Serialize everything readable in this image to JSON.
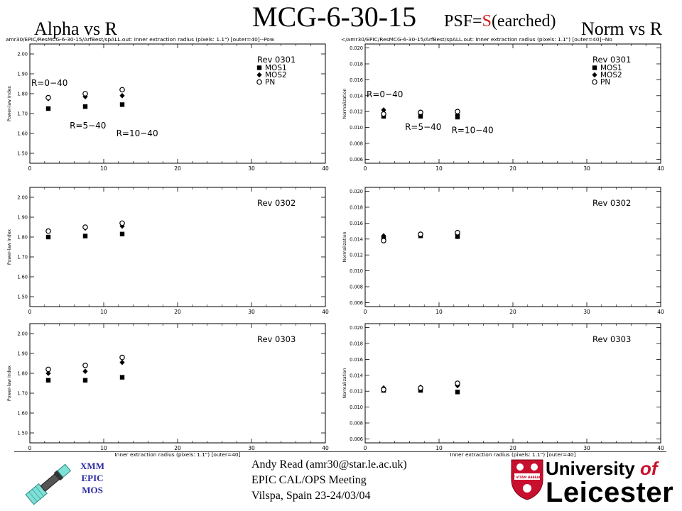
{
  "header": {
    "title": "MCG-6-30-15",
    "psf_prefix": "PSF=",
    "psf_letter": "S",
    "psf_suffix": "(earched)",
    "left_heading": "Alpha vs R",
    "right_heading": "Norm vs R"
  },
  "colors": {
    "psf_letter": "#d01818",
    "logo_red": "#c8102e",
    "xmm_blue": "#2a2aa0"
  },
  "chart_data": [
    {
      "type": "scatter",
      "column": "left",
      "row": 0,
      "header_text": "amr30/EPIC/ResMCG-6-30-15/ArfBest/spALL.out: Inner extraction radius (pixels: 1.1\") [outer=40]--Pow",
      "ylabel": "Power-law Index",
      "xlabel": "",
      "xlim": [
        0,
        40
      ],
      "ylim": [
        1.45,
        2.05
      ],
      "yticks": [
        1.5,
        1.6,
        1.7,
        1.8,
        1.9,
        2.0
      ],
      "xticks": [
        0,
        10,
        20,
        30,
        40
      ],
      "ytick_labels": [
        "1.50",
        "1.60",
        "1.70",
        "1.80",
        "1.90",
        "2.00"
      ],
      "legend_title": "Rev 0301",
      "legend_position": "top-right",
      "series": [
        {
          "name": "MOS1",
          "marker": "square",
          "x": [
            2.5,
            7.5,
            12.5
          ],
          "y": [
            1.725,
            1.735,
            1.745
          ]
        },
        {
          "name": "MOS2",
          "marker": "diamond",
          "x": [
            2.5,
            7.5,
            12.5
          ],
          "y": [
            1.775,
            1.785,
            1.79
          ]
        },
        {
          "name": "PN",
          "marker": "circle",
          "x": [
            2.5,
            7.5,
            12.5
          ],
          "y": [
            1.78,
            1.8,
            1.82
          ]
        }
      ],
      "annotations": [
        {
          "text": "R=0−40",
          "x": 0,
          "y": 1.84
        },
        {
          "text": "R=5−40",
          "x": 5.2,
          "y": 1.625
        },
        {
          "text": "R=10−40",
          "x": 11.5,
          "y": 1.585
        }
      ]
    },
    {
      "type": "scatter",
      "column": "left",
      "row": 1,
      "header_text": "",
      "ylabel": "Power-law Index",
      "xlabel": "",
      "xlim": [
        0,
        40
      ],
      "ylim": [
        1.45,
        2.05
      ],
      "yticks": [
        1.5,
        1.6,
        1.7,
        1.8,
        1.9,
        2.0
      ],
      "xticks": [
        0,
        10,
        20,
        30,
        40
      ],
      "ytick_labels": [
        "1.50",
        "1.60",
        "1.70",
        "1.80",
        "1.90",
        "2.00"
      ],
      "legend_title": "Rev 0302",
      "legend_position": "top-right",
      "series": [
        {
          "name": "MOS1",
          "marker": "square",
          "x": [
            2.5,
            7.5,
            12.5
          ],
          "y": [
            1.8,
            1.805,
            1.815
          ]
        },
        {
          "name": "MOS2",
          "marker": "diamond",
          "x": [
            2.5,
            7.5,
            12.5
          ],
          "y": [
            1.83,
            1.845,
            1.855
          ]
        },
        {
          "name": "PN",
          "marker": "circle",
          "x": [
            2.5,
            7.5,
            12.5
          ],
          "y": [
            1.83,
            1.85,
            1.87
          ]
        }
      ],
      "annotations": []
    },
    {
      "type": "scatter",
      "column": "left",
      "row": 2,
      "header_text": "",
      "ylabel": "Power-law Index",
      "xlabel": "Inner extraction radius (pixels: 1.1\") [outer=40]",
      "xlim": [
        0,
        40
      ],
      "ylim": [
        1.45,
        2.05
      ],
      "yticks": [
        1.5,
        1.6,
        1.7,
        1.8,
        1.9,
        2.0
      ],
      "xticks": [
        0,
        10,
        20,
        30,
        40
      ],
      "ytick_labels": [
        "1.50",
        "1.60",
        "1.70",
        "1.80",
        "1.90",
        "2.00"
      ],
      "legend_title": "Rev 0303",
      "legend_position": "top-right",
      "series": [
        {
          "name": "MOS1",
          "marker": "square",
          "x": [
            2.5,
            7.5,
            12.5
          ],
          "y": [
            1.765,
            1.765,
            1.78
          ]
        },
        {
          "name": "MOS2",
          "marker": "diamond",
          "x": [
            2.5,
            7.5,
            12.5
          ],
          "y": [
            1.8,
            1.81,
            1.855
          ]
        },
        {
          "name": "PN",
          "marker": "circle",
          "x": [
            2.5,
            7.5,
            12.5
          ],
          "y": [
            1.82,
            1.84,
            1.88
          ]
        }
      ],
      "annotations": []
    },
    {
      "type": "scatter",
      "column": "right",
      "row": 0,
      "header_text": "</amr30/EPIC/ResMCG-6-30-15/ArfBest/spALL.out: Inner extraction radius (pixels: 1.1\") [outer=40]--No",
      "ylabel": "Normalization",
      "xlabel": "",
      "xlim": [
        0,
        40
      ],
      "ylim": [
        0.0055,
        0.0205
      ],
      "yticks": [
        0.006,
        0.008,
        0.01,
        0.012,
        0.014,
        0.016,
        0.018,
        0.02
      ],
      "xticks": [
        0,
        10,
        20,
        30,
        40
      ],
      "ytick_labels": [
        "0.006",
        "0.008",
        "0.010",
        "0.012",
        "0.014",
        "0.016",
        "0.018",
        "0.020"
      ],
      "legend_title": "Rev 0301",
      "legend_position": "top-right",
      "series": [
        {
          "name": "MOS1",
          "marker": "square",
          "x": [
            2.5,
            7.5,
            12.5
          ],
          "y": [
            0.0114,
            0.0114,
            0.0113
          ]
        },
        {
          "name": "MOS2",
          "marker": "diamond",
          "x": [
            2.5,
            7.5,
            12.5
          ],
          "y": [
            0.0122,
            0.0118,
            0.0116
          ]
        },
        {
          "name": "PN",
          "marker": "circle",
          "x": [
            2.5,
            7.5,
            12.5
          ],
          "y": [
            0.0117,
            0.0119,
            0.012
          ]
        }
      ],
      "annotations": [
        {
          "text": "R=0−40",
          "x": 0,
          "y": 0.0138
        },
        {
          "text": "R=5−40",
          "x": 5.2,
          "y": 0.0097
        },
        {
          "text": "R=10−40",
          "x": 11.5,
          "y": 0.0093
        }
      ]
    },
    {
      "type": "scatter",
      "column": "right",
      "row": 1,
      "header_text": "",
      "ylabel": "Normalization",
      "xlabel": "",
      "xlim": [
        0,
        40
      ],
      "ylim": [
        0.0055,
        0.0205
      ],
      "yticks": [
        0.006,
        0.008,
        0.01,
        0.012,
        0.014,
        0.016,
        0.018,
        0.02
      ],
      "xticks": [
        0,
        10,
        20,
        30,
        40
      ],
      "ytick_labels": [
        "0.006",
        "0.008",
        "0.010",
        "0.012",
        "0.014",
        "0.016",
        "0.018",
        "0.020"
      ],
      "legend_title": "Rev 0302",
      "legend_position": "top-right",
      "series": [
        {
          "name": "MOS1",
          "marker": "square",
          "x": [
            2.5,
            7.5,
            12.5
          ],
          "y": [
            0.0141,
            0.0144,
            0.0143
          ]
        },
        {
          "name": "MOS2",
          "marker": "diamond",
          "x": [
            2.5,
            7.5,
            12.5
          ],
          "y": [
            0.0144,
            0.0146,
            0.0146
          ]
        },
        {
          "name": "PN",
          "marker": "circle",
          "x": [
            2.5,
            7.5,
            12.5
          ],
          "y": [
            0.0138,
            0.0146,
            0.0148
          ]
        }
      ],
      "annotations": []
    },
    {
      "type": "scatter",
      "column": "right",
      "row": 2,
      "header_text": "",
      "ylabel": "Normalization",
      "xlabel": "Inner extraction radius (pixels: 1.1\") [outer=40]",
      "xlim": [
        0,
        40
      ],
      "ylim": [
        0.0055,
        0.0205
      ],
      "yticks": [
        0.006,
        0.008,
        0.01,
        0.012,
        0.014,
        0.016,
        0.018,
        0.02
      ],
      "xticks": [
        0,
        10,
        20,
        30,
        40
      ],
      "ytick_labels": [
        "0.006",
        "0.008",
        "0.010",
        "0.012",
        "0.014",
        "0.016",
        "0.018",
        "0.020"
      ],
      "legend_title": "Rev 0303",
      "legend_position": "top-right",
      "series": [
        {
          "name": "MOS1",
          "marker": "square",
          "x": [
            2.5,
            7.5,
            12.5
          ],
          "y": [
            0.0121,
            0.0121,
            0.0119
          ]
        },
        {
          "name": "MOS2",
          "marker": "diamond",
          "x": [
            2.5,
            7.5,
            12.5
          ],
          "y": [
            0.0124,
            0.0125,
            0.0127
          ]
        },
        {
          "name": "PN",
          "marker": "circle",
          "x": [
            2.5,
            7.5,
            12.5
          ],
          "y": [
            0.0122,
            0.0124,
            0.013
          ]
        }
      ],
      "annotations": []
    }
  ],
  "footer": {
    "xmm_line1": "XMM",
    "xmm_line2": "EPIC",
    "xmm_line3": "MOS",
    "author": "Andy Read (amr30@star.le.ac.uk)",
    "meeting": "EPIC CAL/OPS Meeting",
    "location": "Vilspa, Spain 23-24/03/04",
    "logo_line1_main": "University ",
    "logo_line1_of": "of",
    "logo_line2": "Leicester",
    "crest_motto": "UT VITAM HABEANT"
  }
}
